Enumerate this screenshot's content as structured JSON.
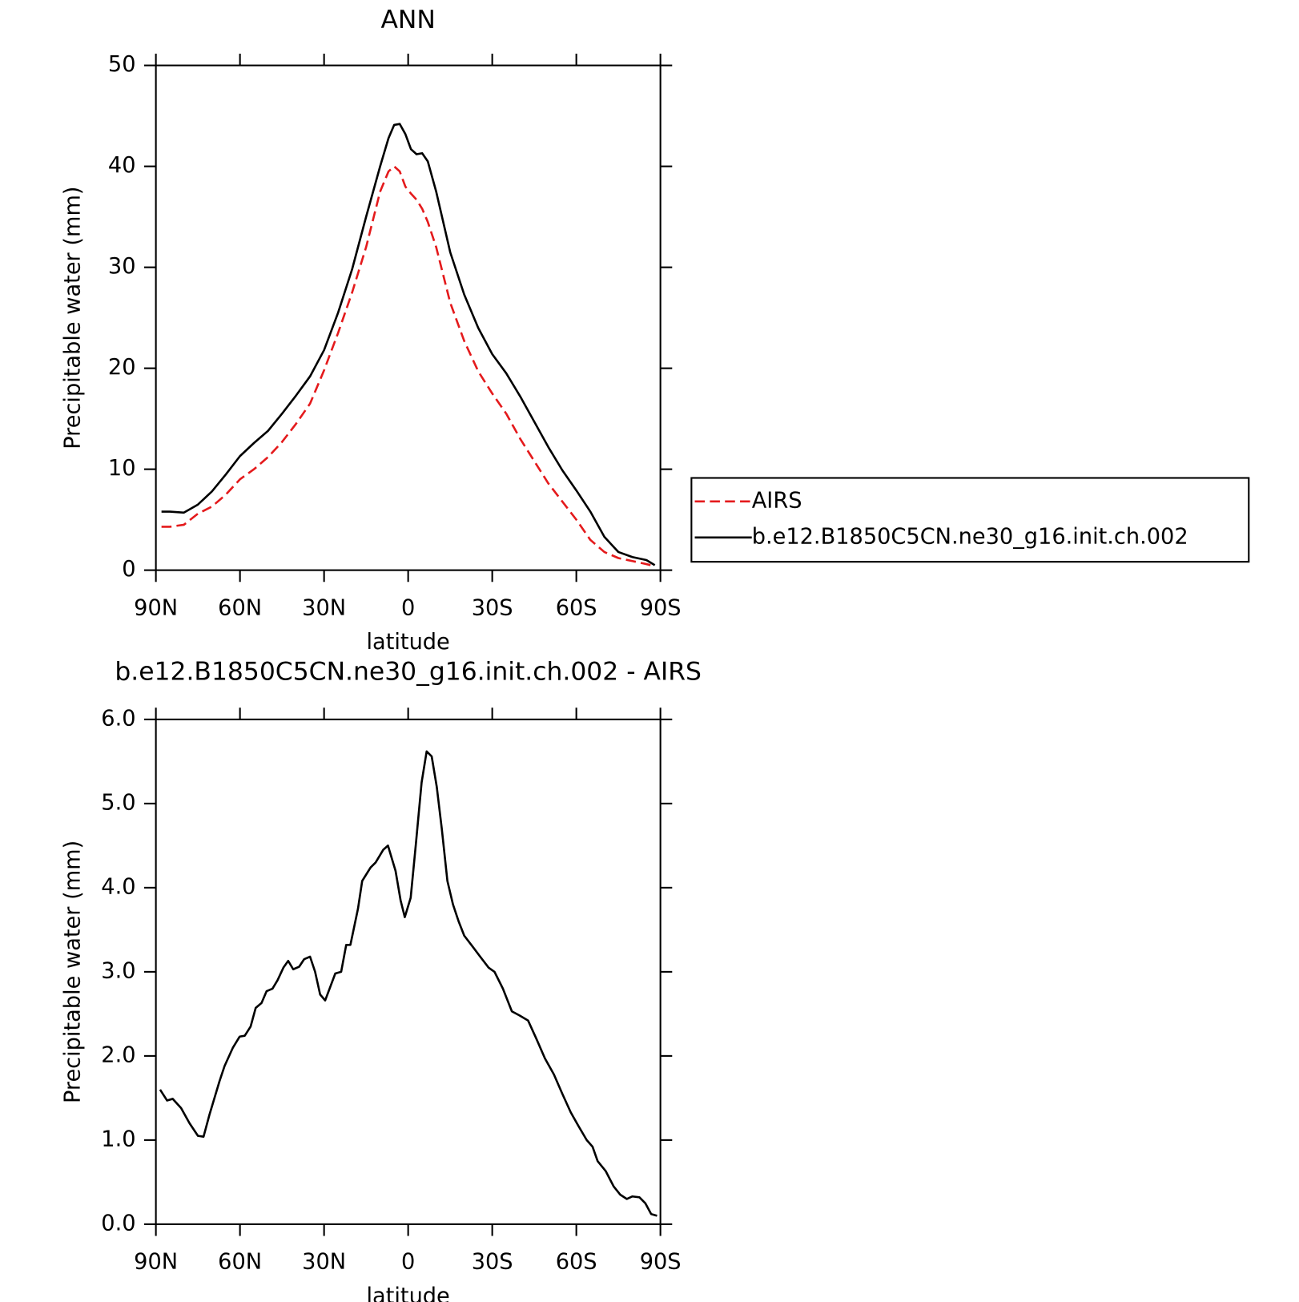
{
  "chart_data": [
    {
      "type": "line",
      "title": "ANN",
      "xlabel": "latitude",
      "ylabel": "Precipitable water (mm)",
      "x": [
        88,
        85,
        80,
        75,
        70,
        65,
        60,
        55,
        50,
        45,
        40,
        35,
        30,
        25,
        20,
        15,
        10,
        7,
        5,
        3,
        1,
        -1,
        -3,
        -5,
        -7,
        -10,
        -15,
        -20,
        -25,
        -30,
        -35,
        -40,
        -45,
        -50,
        -55,
        -60,
        -65,
        -70,
        -75,
        -80,
        -85,
        -88
      ],
      "series": [
        {
          "name": "AIRS",
          "color": "#e41a1c",
          "dash": true,
          "values": [
            4.3,
            4.3,
            4.5,
            5.6,
            6.3,
            7.5,
            9.0,
            10,
            11.2,
            12.7,
            14.5,
            16.5,
            19.8,
            23.5,
            27.5,
            32,
            37.5,
            39.5,
            40,
            39.5,
            38,
            37.3,
            36.7,
            35.8,
            34.5,
            32,
            26.5,
            22.7,
            19.7,
            17.5,
            15.5,
            13,
            10.8,
            8.6,
            6.8,
            5,
            3,
            1.8,
            1.2,
            0.9,
            0.6,
            0.4
          ]
        },
        {
          "name": "b.e12.B1850C5CN.ne30_g16.init.ch.002",
          "color": "#000000",
          "dash": false,
          "values": [
            5.8,
            5.8,
            5.7,
            6.5,
            7.8,
            9.5,
            11.3,
            12.6,
            13.8,
            15.5,
            17.3,
            19.2,
            21.8,
            25.5,
            29.8,
            35,
            40,
            42.8,
            44.1,
            44.2,
            43.2,
            41.7,
            41.2,
            41.3,
            40.5,
            37.5,
            31.5,
            27.3,
            24,
            21.4,
            19.5,
            17.2,
            14.7,
            12.2,
            9.9,
            7.9,
            5.8,
            3.3,
            1.8,
            1.3,
            1.0,
            0.5
          ]
        }
      ],
      "xlim": [
        90,
        -90
      ],
      "xticks": [
        {
          "value": 90,
          "label": "90N"
        },
        {
          "value": 60,
          "label": "60N"
        },
        {
          "value": 30,
          "label": "30N"
        },
        0,
        {
          "value": -30,
          "label": "30S"
        },
        {
          "value": -60,
          "label": "60S"
        },
        {
          "value": -90,
          "label": "90S"
        }
      ],
      "ylim": [
        0,
        50
      ],
      "yticks": [
        0,
        10,
        20,
        30,
        40,
        50
      ],
      "legend": "right"
    },
    {
      "type": "line",
      "title": "b.e12.B1850C5CN.ne30_g16.init.ch.002 - AIRS",
      "xlabel": "latitude",
      "ylabel": "Precipitable water (mm)",
      "x": [
        88.5,
        86,
        84,
        81,
        78,
        75,
        73,
        70.9,
        67.3,
        65.5,
        62.5,
        60.1,
        58.3,
        56.2,
        54.4,
        52.3,
        50.5,
        48.4,
        46.6,
        44.5,
        42.8,
        41,
        38.9,
        37.1,
        35,
        33.2,
        31.4,
        29.6,
        27.8,
        26,
        23.9,
        22.1,
        20.6,
        17.9,
        16.4,
        13.4,
        11.6,
        8.9,
        7.2,
        4.5,
        2.7,
        1.2,
        -0.9,
        -2.7,
        -4.8,
        -6.6,
        -8.4,
        -10.2,
        -12,
        -14,
        -16,
        -18,
        -20,
        -23,
        -25.7,
        -28.7,
        -30.8,
        -33.8,
        -37,
        -39.8,
        -42.8,
        -45.8,
        -48.8,
        -52,
        -55,
        -58,
        -60.7,
        -63.7,
        -65.8,
        -67.6,
        -70.5,
        -73.3,
        -75.7,
        -78,
        -80,
        -82.5,
        -84.6,
        -86.7,
        -88.8
      ],
      "series": [
        {
          "name": null,
          "color": "#000000",
          "dash": false,
          "values": [
            1.6,
            1.47,
            1.49,
            1.38,
            1.2,
            1.05,
            1.04,
            1.3,
            1.7,
            1.88,
            2.1,
            2.23,
            2.24,
            2.35,
            2.57,
            2.63,
            2.77,
            2.8,
            2.9,
            3.05,
            3.13,
            3.03,
            3.06,
            3.15,
            3.18,
            3.0,
            2.73,
            2.66,
            2.82,
            2.98,
            3.0,
            3.32,
            3.32,
            3.75,
            4.08,
            4.24,
            4.3,
            4.45,
            4.5,
            4.2,
            3.85,
            3.65,
            3.88,
            4.5,
            5.25,
            5.62,
            5.56,
            5.2,
            4.7,
            4.08,
            3.8,
            3.6,
            3.43,
            3.3,
            3.18,
            3.05,
            3.0,
            2.8,
            2.53,
            2.48,
            2.42,
            2.2,
            1.97,
            1.78,
            1.55,
            1.33,
            1.17,
            1.0,
            0.92,
            0.75,
            0.63,
            0.45,
            0.35,
            0.3,
            0.33,
            0.32,
            0.25,
            0.12,
            0.1
          ]
        }
      ],
      "xlim": [
        90,
        -90
      ],
      "xticks": [
        {
          "value": 90,
          "label": "90N"
        },
        {
          "value": 60,
          "label": "60N"
        },
        {
          "value": 30,
          "label": "30N"
        },
        0,
        {
          "value": -30,
          "label": "30S"
        },
        {
          "value": -60,
          "label": "60S"
        },
        {
          "value": -90,
          "label": "90S"
        }
      ],
      "ylim": [
        0,
        6
      ],
      "yticks": [
        {
          "value": 0,
          "label": "0.0"
        },
        {
          "value": 1,
          "label": "1.0"
        },
        {
          "value": 2,
          "label": "2.0"
        },
        {
          "value": 3,
          "label": "3.0"
        },
        {
          "value": 4,
          "label": "4.0"
        },
        {
          "value": 5,
          "label": "5.0"
        },
        {
          "value": 6,
          "label": "6.0"
        }
      ]
    }
  ]
}
